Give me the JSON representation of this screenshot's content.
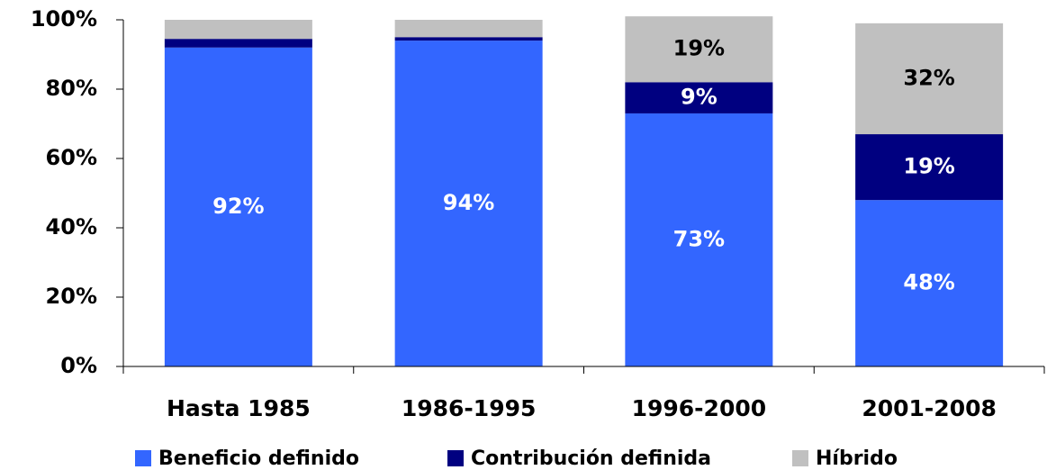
{
  "chart_data": {
    "type": "stacked_bar",
    "categories": [
      "Hasta 1985",
      "1986-1995",
      "1996-2000",
      "2001-2008"
    ],
    "series": [
      {
        "name": "Beneficio definido",
        "color": "#3366ff",
        "values": [
          92,
          94,
          73,
          48
        ],
        "value_labels": [
          "92%",
          "94%",
          "73%",
          "48%"
        ]
      },
      {
        "name": "Contribución definida",
        "color": "#000080",
        "values": [
          2.5,
          1,
          9,
          19
        ],
        "value_labels": [
          null,
          null,
          "9%",
          "19%"
        ]
      },
      {
        "name": "Híbrido",
        "color": "#c0c0c0",
        "values": [
          5.5,
          5,
          19,
          32
        ],
        "value_labels": [
          null,
          null,
          "19%",
          "32%"
        ]
      }
    ],
    "ylim": [
      0,
      100
    ],
    "yticks": [
      {
        "value": 0,
        "label": "0%"
      },
      {
        "value": 20,
        "label": "20%"
      },
      {
        "value": 40,
        "label": "40%"
      },
      {
        "value": 60,
        "label": "60%"
      },
      {
        "value": 80,
        "label": "80%"
      },
      {
        "value": 100,
        "label": "100%"
      }
    ]
  }
}
